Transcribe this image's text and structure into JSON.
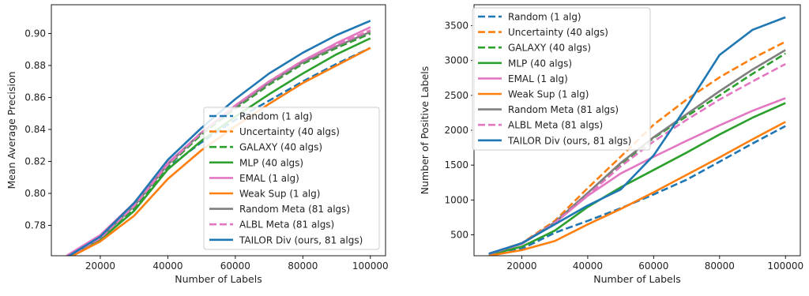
{
  "figure": {
    "background": "#ffffff"
  },
  "chart_data": [
    {
      "type": "line",
      "title": "",
      "xlabel": "Number of Labels",
      "ylabel": "Mean Average Precision",
      "xlim": [
        5500,
        104500
      ],
      "ylim": [
        0.761,
        0.918
      ],
      "xticks": [
        20000,
        40000,
        60000,
        80000,
        100000
      ],
      "yticks": [
        0.78,
        0.8,
        0.82,
        0.84,
        0.86,
        0.88,
        0.9
      ],
      "ytick_labels": [
        "0.78",
        "0.80",
        "0.82",
        "0.84",
        "0.86",
        "0.88",
        "0.90"
      ],
      "grid": false,
      "legend_placement": "lower-right",
      "x": [
        10000,
        20000,
        30000,
        40000,
        50000,
        60000,
        70000,
        80000,
        90000,
        100000
      ],
      "series": [
        {
          "name": "Random (1 alg)",
          "color": "#1f77b4",
          "dash": true,
          "values": [
            0.76,
            0.771,
            0.79,
            0.816,
            0.832,
            0.846,
            0.858,
            0.87,
            0.881,
            0.891
          ]
        },
        {
          "name": "Uncertainty (40 algs)",
          "color": "#ff7f0e",
          "dash": true,
          "values": [
            0.76,
            0.772,
            0.792,
            0.818,
            0.838,
            0.855,
            0.87,
            0.883,
            0.893,
            0.902
          ]
        },
        {
          "name": "GALAXY (40 algs)",
          "color": "#2ca02c",
          "dash": true,
          "values": [
            0.76,
            0.772,
            0.791,
            0.817,
            0.837,
            0.853,
            0.868,
            0.881,
            0.891,
            0.9
          ]
        },
        {
          "name": "MLP (40 algs)",
          "color": "#2ca02c",
          "dash": false,
          "values": [
            0.76,
            0.771,
            0.789,
            0.815,
            0.833,
            0.848,
            0.862,
            0.875,
            0.887,
            0.897
          ]
        },
        {
          "name": "EMAL (1 alg)",
          "color": "#e377c2",
          "dash": false,
          "values": [
            0.761,
            0.774,
            0.794,
            0.819,
            0.838,
            0.855,
            0.87,
            0.883,
            0.894,
            0.904
          ]
        },
        {
          "name": "Weak Sup (1 alg)",
          "color": "#ff7f0e",
          "dash": false,
          "values": [
            0.759,
            0.77,
            0.786,
            0.809,
            0.827,
            0.842,
            0.856,
            0.869,
            0.88,
            0.891
          ]
        },
        {
          "name": "Random Meta (81 algs)",
          "color": "#7f7f7f",
          "dash": false,
          "values": [
            0.76,
            0.772,
            0.792,
            0.818,
            0.838,
            0.854,
            0.869,
            0.882,
            0.892,
            0.901
          ]
        },
        {
          "name": "ALBL Meta (81 algs)",
          "color": "#e377c2",
          "dash": true,
          "values": [
            0.76,
            0.772,
            0.792,
            0.818,
            0.838,
            0.855,
            0.87,
            0.883,
            0.893,
            0.902
          ]
        },
        {
          "name": "TAILOR Div (ours, 81 algs)",
          "color": "#1f77b4",
          "dash": false,
          "values": [
            0.76,
            0.773,
            0.794,
            0.821,
            0.841,
            0.859,
            0.875,
            0.888,
            0.899,
            0.908
          ]
        }
      ],
      "legend_labels": [
        "Random (1 alg)",
        "Uncertainty (40 algs)",
        "GALAXY (40 algs)",
        "MLP (40 algs)",
        "EMAL (1 alg)",
        "Weak Sup (1 alg)",
        "Random Meta (81 algs)",
        "ALBL Meta (81 algs)",
        "TAILOR Div (ours, 81 algs)"
      ],
      "xtick_labels": [
        "20000",
        "40000",
        "60000",
        "80000",
        "100000"
      ]
    },
    {
      "type": "line",
      "title": "",
      "xlabel": "Number of Labels",
      "ylabel": "Number of Positive Labels",
      "xlim": [
        5500,
        104500
      ],
      "ylim": [
        200,
        3800
      ],
      "xticks": [
        20000,
        40000,
        60000,
        80000,
        100000
      ],
      "yticks": [
        500,
        1000,
        1500,
        2000,
        2500,
        3000,
        3500
      ],
      "ytick_labels": [
        "500",
        "1000",
        "1500",
        "2000",
        "2500",
        "3000",
        "3500"
      ],
      "grid": false,
      "legend_placement": "upper-left",
      "x": [
        10000,
        20000,
        30000,
        40000,
        50000,
        60000,
        70000,
        80000,
        90000,
        100000
      ],
      "series": [
        {
          "name": "Random (1 alg)",
          "color": "#1f77b4",
          "dash": true,
          "values": [
            200,
            300,
            530,
            700,
            880,
            1080,
            1290,
            1550,
            1810,
            2060
          ]
        },
        {
          "name": "Uncertainty (40 algs)",
          "color": "#ff7f0e",
          "dash": true,
          "values": [
            230,
            380,
            700,
            1170,
            1620,
            2080,
            2440,
            2760,
            3030,
            3270
          ]
        },
        {
          "name": "GALAXY (40 algs)",
          "color": "#2ca02c",
          "dash": true,
          "values": [
            225,
            370,
            670,
            1080,
            1510,
            1890,
            2200,
            2500,
            2810,
            3100
          ]
        },
        {
          "name": "MLP (40 algs)",
          "color": "#2ca02c",
          "dash": false,
          "values": [
            215,
            330,
            560,
            900,
            1180,
            1430,
            1680,
            1940,
            2180,
            2390
          ]
        },
        {
          "name": "EMAL (1 alg)",
          "color": "#e377c2",
          "dash": false,
          "values": [
            225,
            380,
            670,
            1060,
            1380,
            1620,
            1850,
            2070,
            2280,
            2460
          ]
        },
        {
          "name": "Weak Sup (1 alg)",
          "color": "#ff7f0e",
          "dash": false,
          "values": [
            200,
            280,
            410,
            650,
            870,
            1110,
            1360,
            1610,
            1870,
            2120
          ]
        },
        {
          "name": "Random Meta (81 algs)",
          "color": "#7f7f7f",
          "dash": false,
          "values": [
            225,
            370,
            680,
            1100,
            1530,
            1900,
            2230,
            2560,
            2870,
            3150
          ]
        },
        {
          "name": "ALBL Meta (81 algs)",
          "color": "#e377c2",
          "dash": true,
          "values": [
            225,
            370,
            670,
            1070,
            1480,
            1840,
            2150,
            2440,
            2700,
            2950
          ]
        },
        {
          "name": "TAILOR Div (ours, 81 algs)",
          "color": "#1f77b4",
          "dash": false,
          "values": [
            230,
            380,
            650,
            920,
            1150,
            1640,
            2340,
            3080,
            3440,
            3620
          ]
        }
      ],
      "legend_labels": [
        "Random (1 alg)",
        "Uncertainty (40 algs)",
        "GALAXY (40 algs)",
        "MLP (40 algs)",
        "EMAL (1 alg)",
        "Weak Sup (1 alg)",
        "Random Meta (81 algs)",
        "ALBL Meta (81 algs)",
        "TAILOR Div (ours, 81 algs)"
      ],
      "xtick_labels": [
        "20000",
        "40000",
        "60000",
        "80000",
        "100000"
      ]
    }
  ]
}
